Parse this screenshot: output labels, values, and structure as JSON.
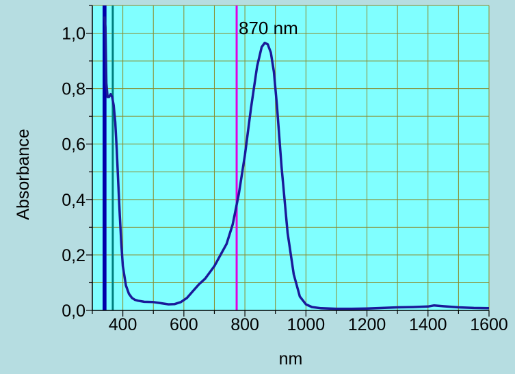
{
  "chart_data": {
    "type": "line",
    "title": "",
    "xlabel": "nm",
    "ylabel": "Absorbance",
    "xlim": [
      300,
      1600
    ],
    "ylim": [
      0,
      1.1
    ],
    "x_ticks": [
      400,
      600,
      800,
      1000,
      1200,
      1400,
      1600
    ],
    "x_tick_labels": [
      "400",
      "600",
      "800",
      "1000",
      "1200",
      "1400",
      "1600"
    ],
    "y_ticks": [
      0,
      0.2,
      0.4,
      0.6,
      0.8,
      1.0
    ],
    "y_tick_labels": [
      "0,0",
      "0,2",
      "0,4",
      "0,6",
      "0,8",
      "1,0"
    ],
    "grid": true,
    "annotation": "870 nm",
    "annotation_x": 870,
    "colors": {
      "background": "#b6dde1",
      "plot_background": "#80ffff",
      "grid": "#8a8a2a",
      "curve": "#1a1a99",
      "marker_line_dark": "#0000aa",
      "marker_line_teal": "#007f7f",
      "marker_line_magenta": "#e000e0"
    },
    "vertical_markers": [
      {
        "x": 337,
        "color": "#0000aa"
      },
      {
        "x": 343,
        "color": "#0000aa"
      },
      {
        "x": 367,
        "color": "#007f7f"
      },
      {
        "x": 773,
        "color": "#e000e0"
      }
    ],
    "series": [
      {
        "x": [
          340,
          343,
          346,
          350,
          355,
          360,
          365,
          370,
          375,
          380,
          385,
          390,
          395,
          400,
          410,
          420,
          430,
          440,
          450,
          470,
          500,
          520,
          550,
          570,
          590,
          610,
          630,
          650,
          670,
          700,
          720,
          740,
          760,
          780,
          800,
          820,
          840,
          855,
          865,
          875,
          885,
          895,
          905,
          920,
          940,
          960,
          980,
          1000,
          1020,
          1050,
          1100,
          1150,
          1200,
          1250,
          1300,
          1350,
          1400,
          1420,
          1450,
          1500,
          1550,
          1600
        ],
        "y": [
          1.06,
          1.02,
          0.82,
          0.77,
          0.77,
          0.78,
          0.77,
          0.74,
          0.68,
          0.58,
          0.46,
          0.34,
          0.24,
          0.16,
          0.09,
          0.06,
          0.045,
          0.038,
          0.035,
          0.031,
          0.03,
          0.027,
          0.022,
          0.023,
          0.03,
          0.045,
          0.07,
          0.095,
          0.115,
          0.16,
          0.2,
          0.24,
          0.31,
          0.42,
          0.56,
          0.73,
          0.88,
          0.95,
          0.965,
          0.96,
          0.93,
          0.86,
          0.74,
          0.52,
          0.28,
          0.13,
          0.05,
          0.022,
          0.012,
          0.008,
          0.006,
          0.006,
          0.007,
          0.009,
          0.011,
          0.012,
          0.014,
          0.018,
          0.015,
          0.011,
          0.009,
          0.008
        ]
      }
    ]
  }
}
